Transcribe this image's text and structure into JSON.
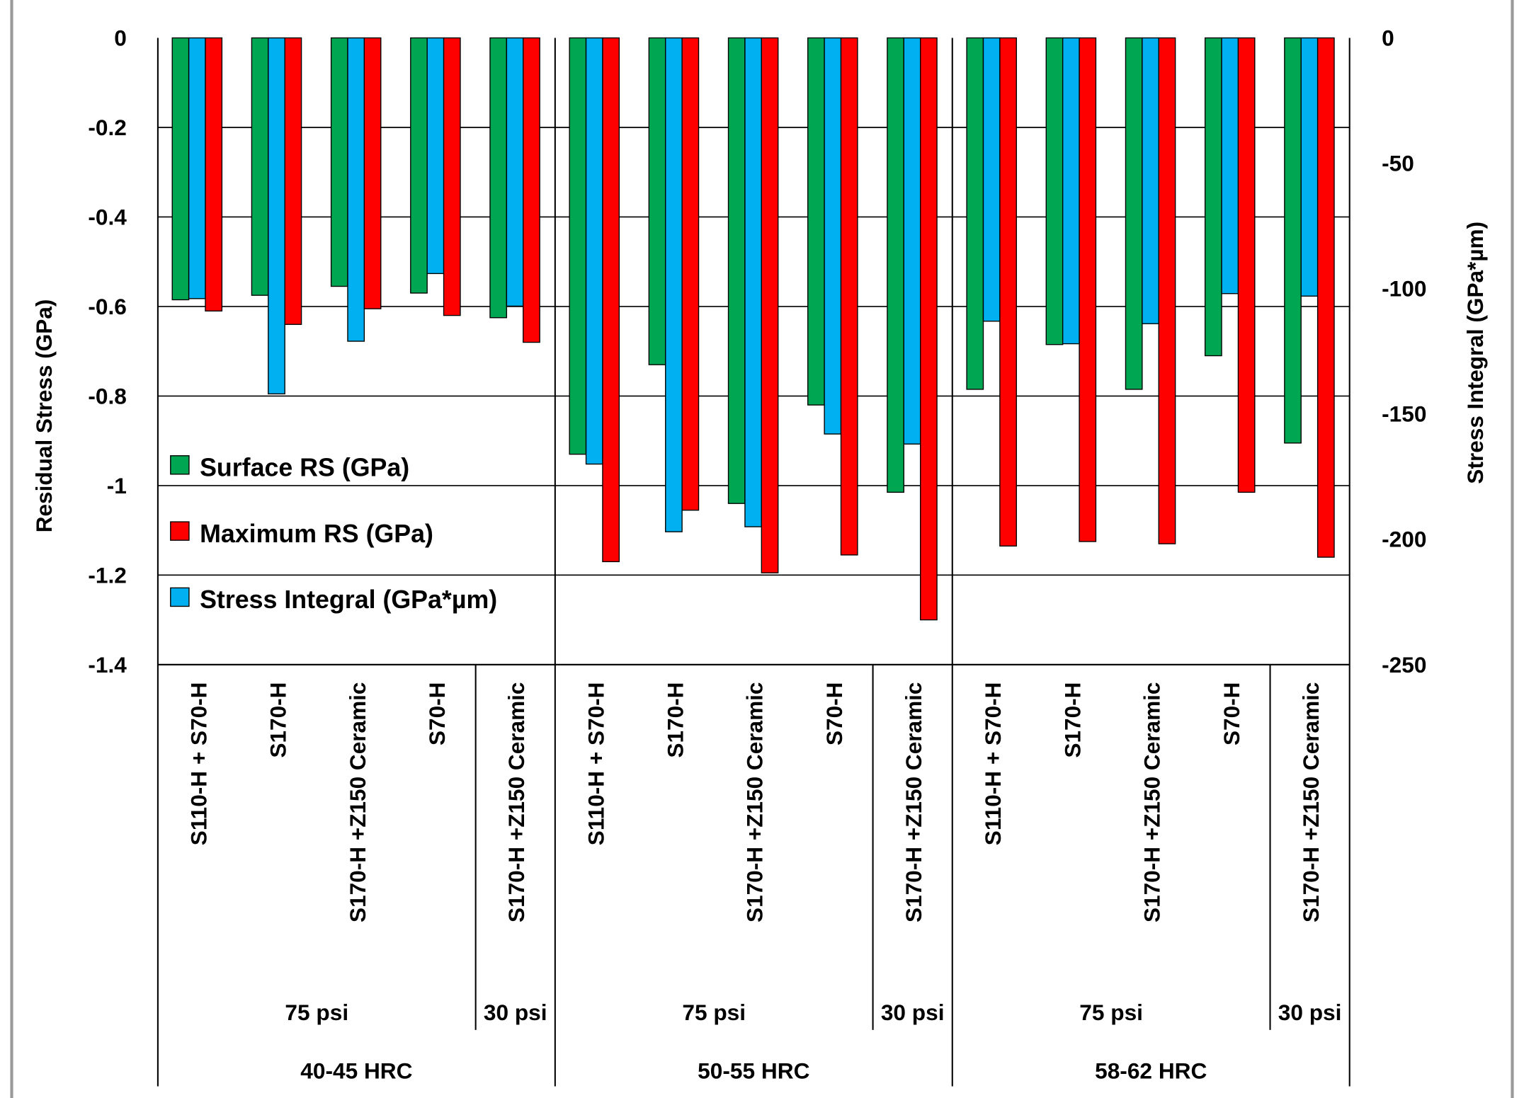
{
  "chart_data": {
    "type": "bar",
    "ylabel": "Residual Stress (GPa)",
    "y2label": "Stress Integral (GPa*µm)",
    "ylim": [
      -1.4,
      0
    ],
    "y2lim": [
      -250,
      0
    ],
    "yticks": [
      "0",
      "-0.2",
      "-0.4",
      "-0.6",
      "-0.8",
      "-1",
      "-1.2",
      "-1.4"
    ],
    "y2ticks": [
      "0",
      "-50",
      "-100",
      "-150",
      "-200",
      "-250"
    ],
    "grid": true,
    "legend_position": "bottom-left",
    "categories": [
      "S110-H + S70-H",
      "S170-H",
      "S170-H +Z150 Ceramic",
      "S70-H",
      "S170-H +Z150 Ceramic",
      "S110-H + S70-H",
      "S170-H",
      "S170-H +Z150 Ceramic",
      "S70-H",
      "S170-H +Z150 Ceramic",
      "S110-H + S70-H",
      "S170-H",
      "S170-H +Z150 Ceramic",
      "S70-H",
      "S170-H +Z150 Ceramic"
    ],
    "pressure_groups": [
      {
        "label": "75 psi",
        "count": 4
      },
      {
        "label": "30 psi",
        "count": 1
      },
      {
        "label": "75 psi",
        "count": 4
      },
      {
        "label": "30 psi",
        "count": 1
      },
      {
        "label": "75 psi",
        "count": 4
      },
      {
        "label": "30 psi",
        "count": 1
      }
    ],
    "hardness_groups": [
      {
        "label": "40-45 HRC",
        "count": 5
      },
      {
        "label": "50-55 HRC",
        "count": 5
      },
      {
        "label": "58-62 HRC",
        "count": 5
      }
    ],
    "series": [
      {
        "name": "Surface RS (GPa)",
        "color": "#00a651",
        "axis": "left",
        "values": [
          -0.585,
          -0.575,
          -0.555,
          -0.57,
          -0.625,
          -0.93,
          -0.73,
          -1.04,
          -0.82,
          -1.015,
          -0.785,
          -0.685,
          -0.785,
          -0.71,
          -0.905
        ]
      },
      {
        "name": "Stress Integral (GPa*µm)",
        "color": "#00b0f0",
        "axis": "right",
        "values": [
          -104,
          -142,
          -121,
          -94,
          -107,
          -170,
          -197,
          -195,
          -158,
          -162,
          -113,
          -122,
          -114,
          -102,
          -103
        ]
      },
      {
        "name": "Maximum RS (GPa)",
        "color": "#ff0000",
        "axis": "left",
        "values": [
          -0.61,
          -0.64,
          -0.605,
          -0.62,
          -0.68,
          -1.17,
          -1.055,
          -1.195,
          -1.155,
          -1.3,
          -1.135,
          -1.125,
          -1.13,
          -1.015,
          -1.16
        ]
      }
    ],
    "legend": [
      {
        "name": "Surface RS (GPa)",
        "color": "#00a651"
      },
      {
        "name": "Maximum RS (GPa)",
        "color": "#ff0000"
      },
      {
        "name": "Stress Integral (GPa*µm)",
        "color": "#00b0f0"
      }
    ]
  }
}
